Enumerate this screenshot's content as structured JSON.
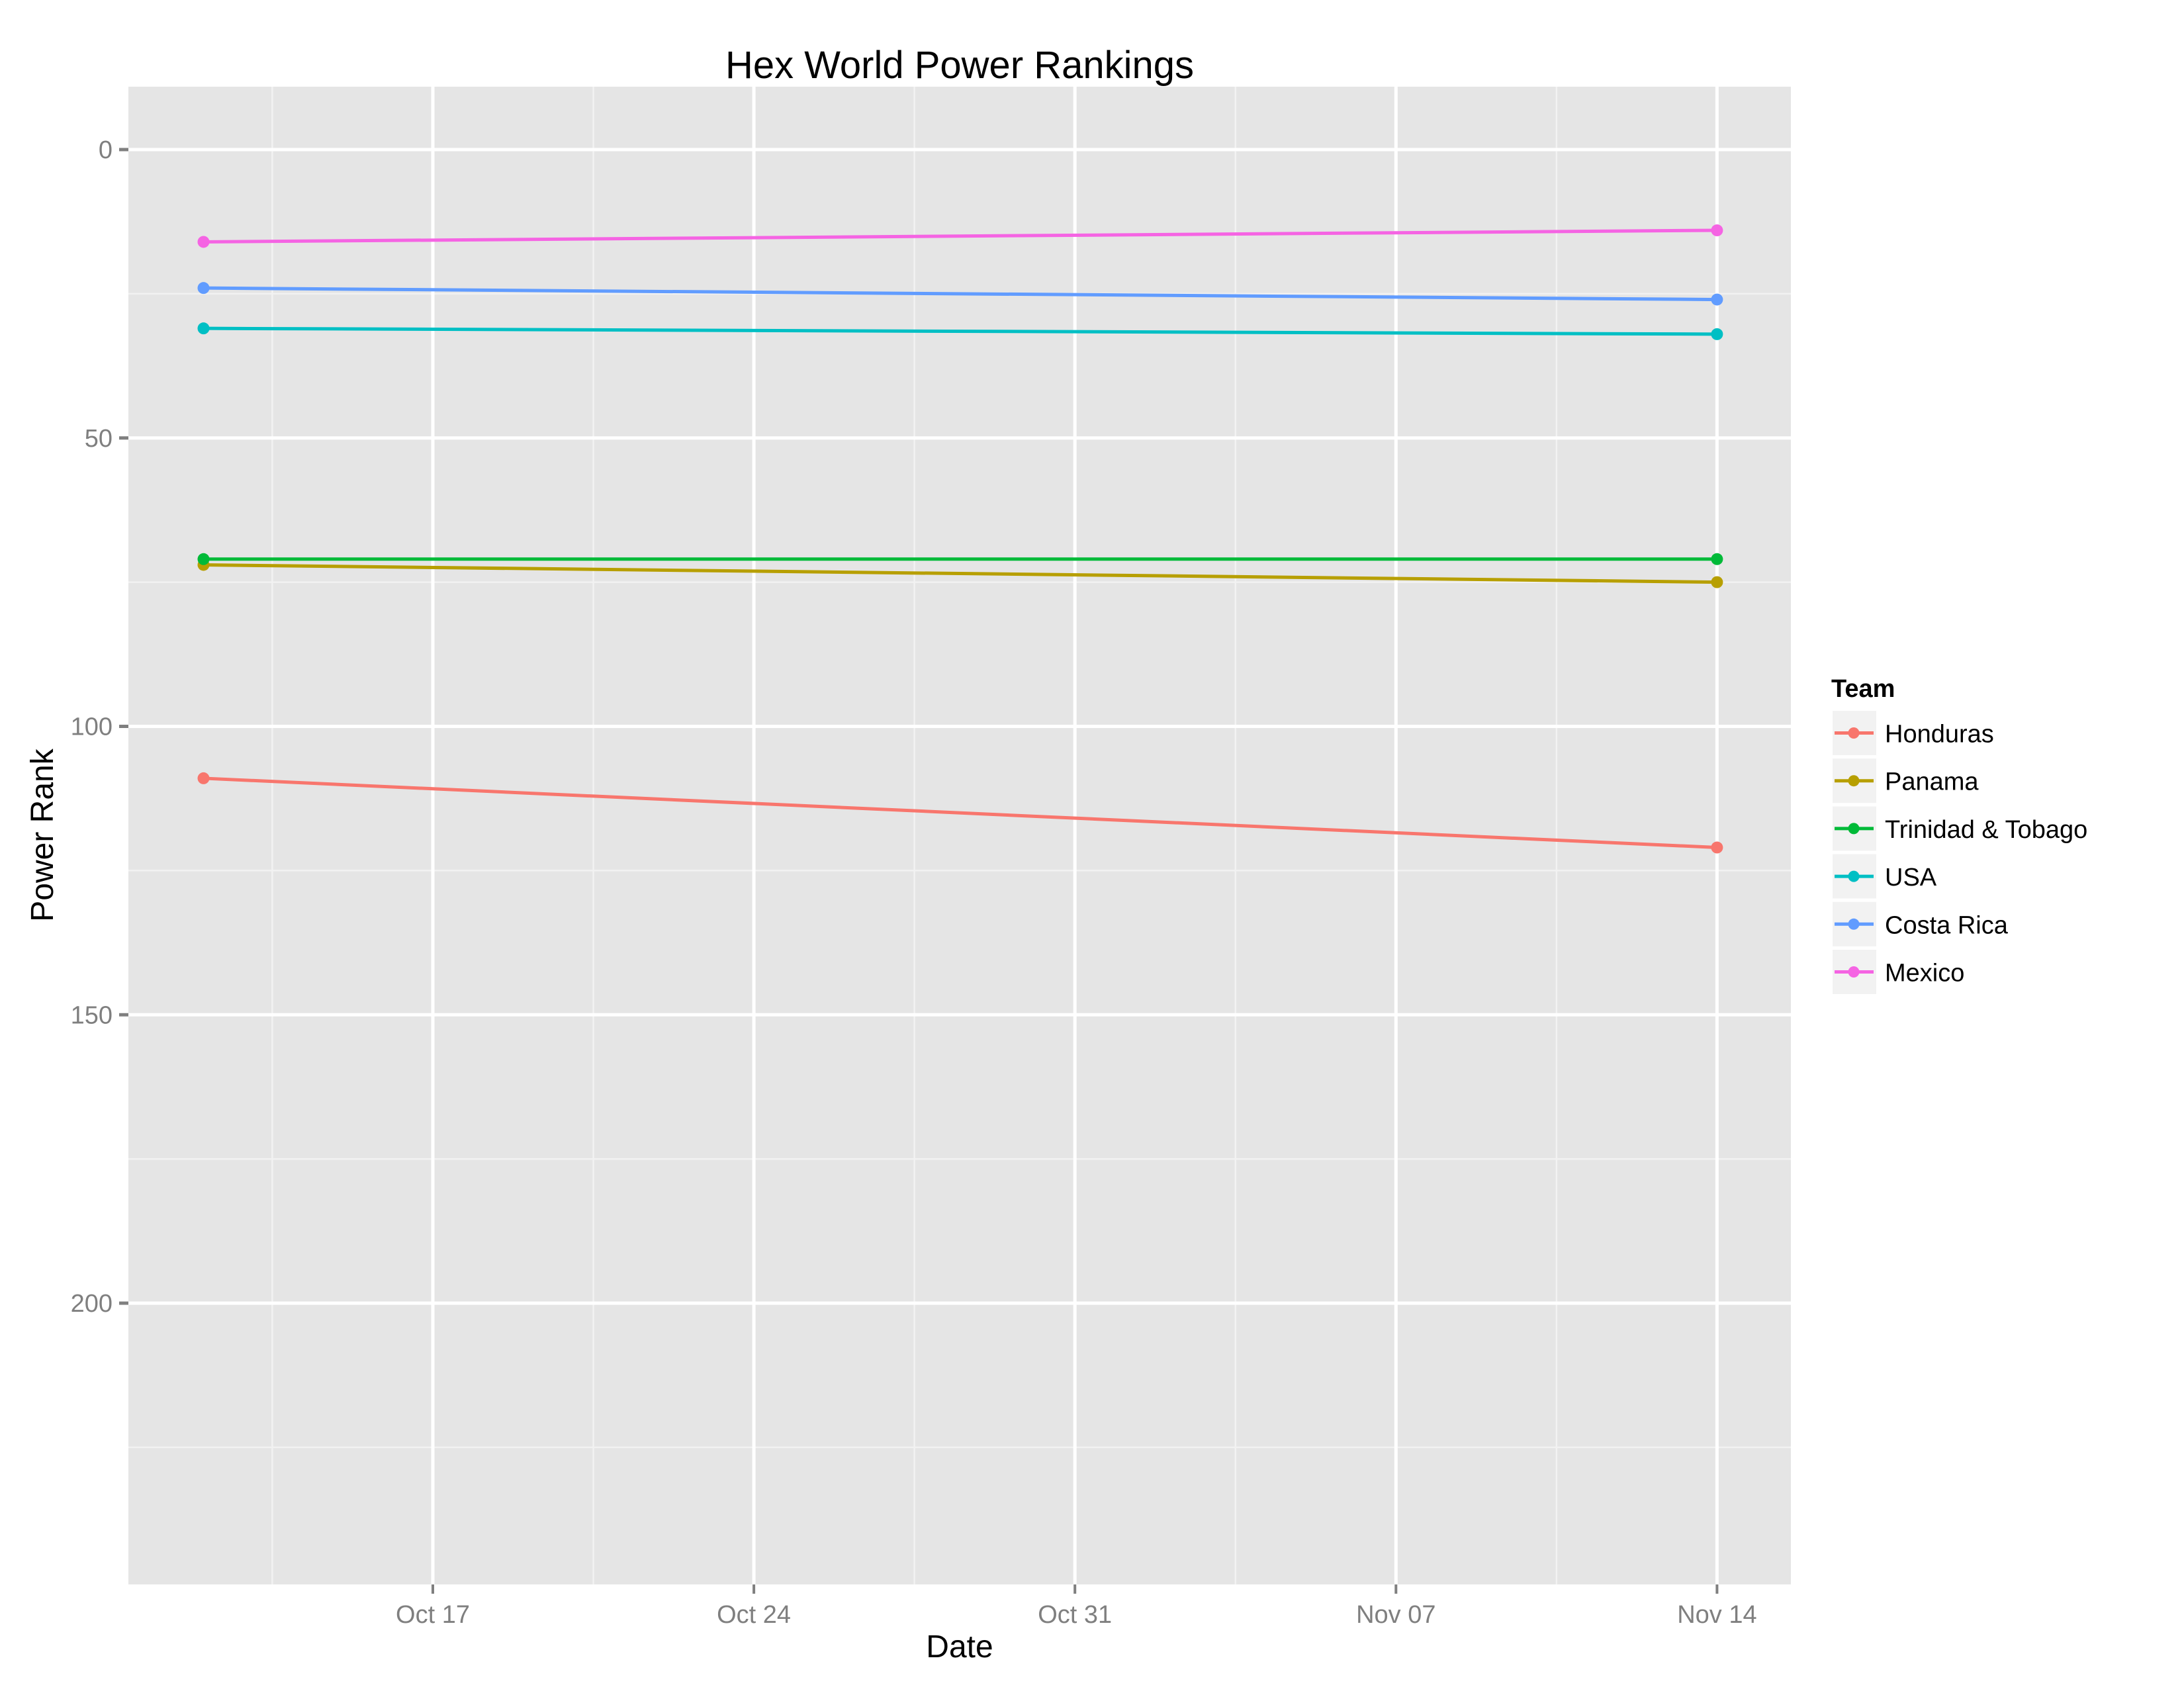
{
  "chart_data": {
    "type": "line",
    "title": "Hex World Power Rankings",
    "xlabel": "Date",
    "ylabel": "Power Rank",
    "x": [
      "2013-10-12",
      "2013-11-14"
    ],
    "x_tick_labels": [
      "Oct 17",
      "Oct 24",
      "Oct 31",
      "Nov 07",
      "Nov 14"
    ],
    "y_tick_labels": [
      "0",
      "50",
      "100",
      "150",
      "200"
    ],
    "y_ticks": [
      0,
      50,
      100,
      150,
      200
    ],
    "ylim": [
      -11,
      249
    ],
    "y_reversed": true,
    "grid": true,
    "legend_title": "Team",
    "legend_position": "right",
    "series": [
      {
        "name": "Honduras",
        "color": "#F8766D",
        "values": [
          109,
          121
        ]
      },
      {
        "name": "Panama",
        "color": "#B79F00",
        "values": [
          72,
          75
        ]
      },
      {
        "name": "Trinidad & Tobago",
        "color": "#00BA38",
        "values": [
          71,
          71
        ]
      },
      {
        "name": "USA",
        "color": "#00BFC4",
        "values": [
          31,
          32
        ]
      },
      {
        "name": "Costa Rica",
        "color": "#619CFF",
        "values": [
          24,
          26
        ]
      },
      {
        "name": "Mexico",
        "color": "#F564E3",
        "values": [
          16,
          14
        ]
      }
    ]
  },
  "colors": {
    "panel_background": "#E5E5E5",
    "grid_major": "#FFFFFF",
    "grid_minor": "#F2F2F2",
    "legend_key_background": "#F2F2F2",
    "tick": "#7F7F7F"
  }
}
